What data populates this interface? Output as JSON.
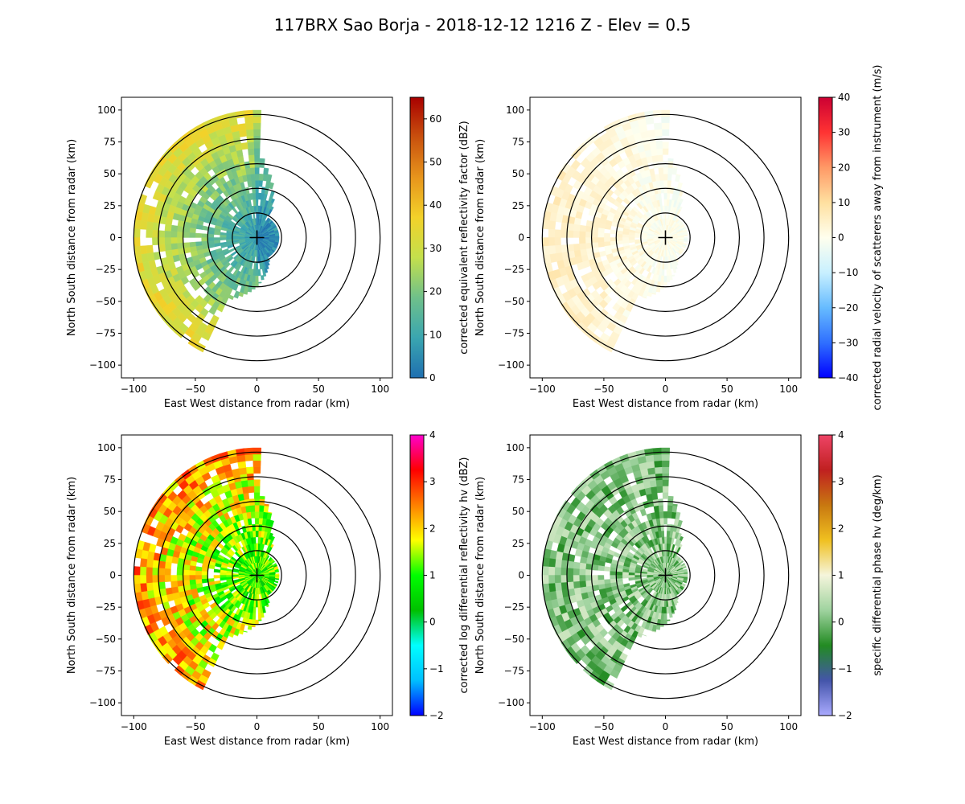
{
  "figure": {
    "title": "117BRX Sao Borja - 2018-12-12 1216 Z -  Elev = 0.5"
  },
  "chart_data": [
    {
      "type": "heatmap",
      "panel": "top-left",
      "field": "reflectivity",
      "xlabel": "East West distance from radar (km)",
      "ylabel": "North South distance from radar (km)",
      "x_ticks": [
        "−100",
        "−50",
        "0",
        "50",
        "100"
      ],
      "y_ticks": [
        "−100",
        "−75",
        "−50",
        "−25",
        "0",
        "25",
        "50",
        "75",
        "100"
      ],
      "xlim": [
        -110,
        110
      ],
      "ylim": [
        -110,
        110
      ],
      "range_rings_km": [
        20,
        40,
        60,
        80,
        100
      ],
      "colorbar": {
        "label": "corrected equivalent reflectivity factor (dBZ)",
        "ticks": [
          "0",
          "10",
          "20",
          "30",
          "40",
          "50",
          "60"
        ],
        "range": [
          0,
          65
        ],
        "colormap": [
          "#1f6fb0",
          "#3aa6b0",
          "#6fc08a",
          "#c4e04c",
          "#f2d22a",
          "#e7951c",
          "#c9510e",
          "#a80000"
        ]
      }
    },
    {
      "type": "heatmap",
      "panel": "top-right",
      "field": "velocity",
      "xlabel": "East West distance from radar (km)",
      "ylabel": "North South distance from radar (km)",
      "x_ticks": [
        "−100",
        "−50",
        "0",
        "50",
        "100"
      ],
      "y_ticks": [
        "−100",
        "−75",
        "−50",
        "−25",
        "0",
        "25",
        "50",
        "75",
        "100"
      ],
      "xlim": [
        -110,
        110
      ],
      "ylim": [
        -110,
        110
      ],
      "range_rings_km": [
        20,
        40,
        60,
        80,
        100
      ],
      "colorbar": {
        "label": "corrected radial velocity of scatterers away from instrument (m/s)",
        "ticks": [
          "−40",
          "−30",
          "−20",
          "−10",
          "0",
          "10",
          "20",
          "30",
          "40"
        ],
        "range": [
          -40,
          40
        ],
        "colormap": [
          "#0000ff",
          "#2f6fff",
          "#66bbff",
          "#c8f0ff",
          "#ffffee",
          "#ffe0a0",
          "#ff9966",
          "#ff3333",
          "#cc0033"
        ]
      }
    },
    {
      "type": "heatmap",
      "panel": "bottom-left",
      "field": "differential_reflectivity",
      "xlabel": "East West distance from radar (km)",
      "ylabel": "North South distance from radar (km)",
      "x_ticks": [
        "−100",
        "−50",
        "0",
        "50",
        "100"
      ],
      "y_ticks": [
        "−100",
        "−75",
        "−50",
        "−25",
        "0",
        "25",
        "50",
        "75",
        "100"
      ],
      "xlim": [
        -110,
        110
      ],
      "ylim": [
        -110,
        110
      ],
      "range_rings_km": [
        20,
        40,
        60,
        80,
        100
      ],
      "colorbar": {
        "label": "corrected log differential reflectivity hv (dBZ)",
        "ticks": [
          "−2",
          "−1",
          "0",
          "1",
          "2",
          "3",
          "4"
        ],
        "range": [
          -2,
          4
        ],
        "colormap": [
          "#0000ff",
          "#00bfff",
          "#00ffff",
          "#00c000",
          "#00ff00",
          "#ffff00",
          "#ff8000",
          "#ff0000",
          "#ff00cc"
        ]
      }
    },
    {
      "type": "heatmap",
      "panel": "bottom-right",
      "field": "specific_differential_phase",
      "xlabel": "East West distance from radar (km)",
      "ylabel": "North South distance from radar (km)",
      "x_ticks": [
        "−100",
        "−50",
        "0",
        "50",
        "100"
      ],
      "y_ticks": [
        "−100",
        "−75",
        "−50",
        "−25",
        "0",
        "25",
        "50",
        "75",
        "100"
      ],
      "xlim": [
        -110,
        110
      ],
      "ylim": [
        -110,
        110
      ],
      "range_rings_km": [
        20,
        40,
        60,
        80,
        100
      ],
      "colorbar": {
        "label": "specific differential phase hv (deg/km)",
        "ticks": [
          "−2",
          "−1",
          "0",
          "1",
          "2",
          "3",
          "4"
        ],
        "range": [
          -2,
          4
        ],
        "colormap": [
          "#aaaaff",
          "#4455aa",
          "#228b22",
          "#9fd39f",
          "#f5f5dc",
          "#f0c020",
          "#c87810",
          "#c02020",
          "#ee4466"
        ]
      }
    }
  ]
}
